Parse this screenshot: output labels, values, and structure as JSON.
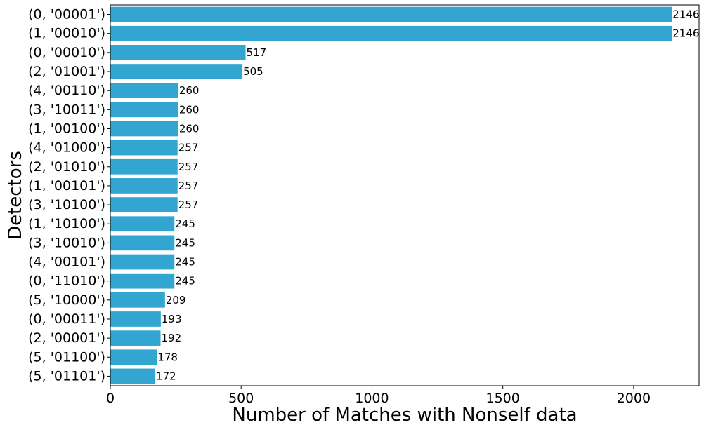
{
  "chart_data": {
    "type": "bar",
    "orientation": "horizontal",
    "title": "",
    "xlabel": "Number of Matches with Nonself data",
    "ylabel": "Detectors",
    "xlim": [
      0,
      2250
    ],
    "xticks": [
      0,
      500,
      1000,
      1500,
      2000
    ],
    "grid": false,
    "bar_color": "#33a5d1",
    "categories": [
      "(0, '00001')",
      "(1, '00010')",
      "(0, '00010')",
      "(2, '01001')",
      "(4, '00110')",
      "(3, '10011')",
      "(1, '00100')",
      "(4, '01000')",
      "(2, '01010')",
      "(1, '00101')",
      "(3, '10100')",
      "(1, '10100')",
      "(3, '10010')",
      "(4, '00101')",
      "(0, '11010')",
      "(5, '10000')",
      "(0, '00011')",
      "(2, '00001')",
      "(5, '01100')",
      "(5, '01101')"
    ],
    "values": [
      2146,
      2146,
      517,
      505,
      260,
      260,
      260,
      257,
      257,
      257,
      257,
      245,
      245,
      245,
      245,
      209,
      193,
      192,
      178,
      172
    ],
    "data_labels": [
      "2146",
      "2146",
      "517",
      "505",
      "260",
      "260",
      "260",
      "257",
      "257",
      "257",
      "257",
      "245",
      "245",
      "245",
      "245",
      "209",
      "193",
      "192",
      "178",
      "172"
    ]
  }
}
